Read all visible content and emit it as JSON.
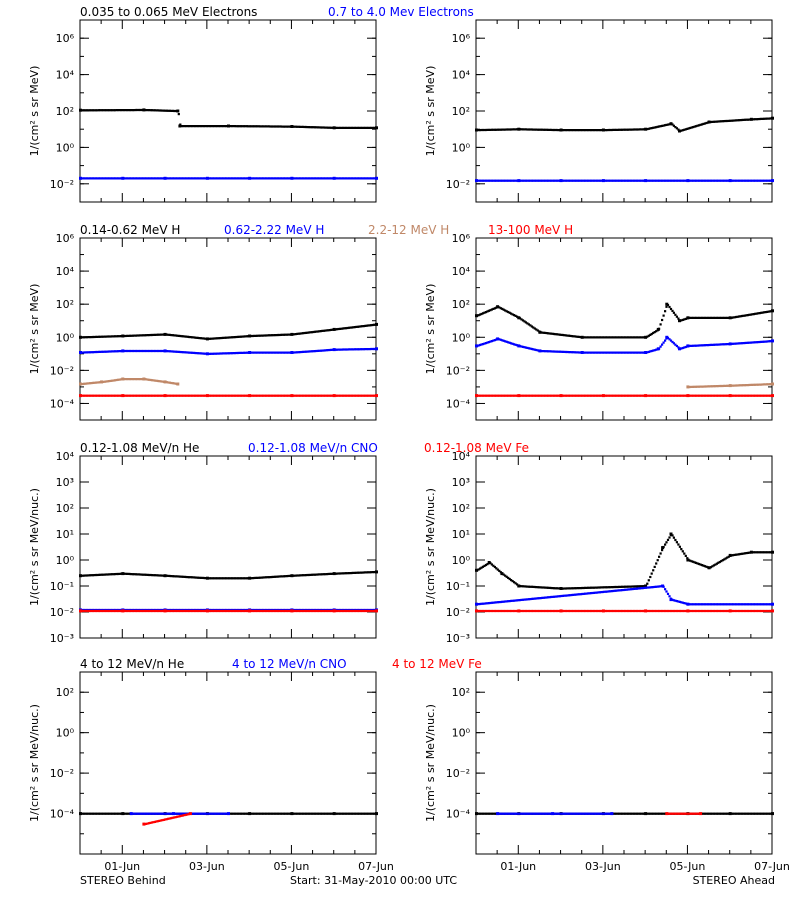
{
  "colors": {
    "black": "#000000",
    "blue": "#0000ff",
    "tan": "#c08868",
    "red": "#ff0000"
  },
  "footer": {
    "left": "STEREO Behind",
    "center": "Start: 31-May-2010 00:00 UTC",
    "right": "STEREO Ahead"
  },
  "chart_data": [
    {
      "type": "scatter",
      "row_title": [
        "0.035 to 0.065 MeV Electrons",
        "0.7 to 4.0 Mev Electrons"
      ],
      "ylabel": "1/(cm² s sr MeV)",
      "yscale": "log",
      "ylim": [
        0.001,
        10000000
      ],
      "yticks": [
        {
          "v": 0.01,
          "label": "10⁻²"
        },
        {
          "v": 1,
          "label": "10⁰"
        },
        {
          "v": 100,
          "label": "10²"
        },
        {
          "v": 10000,
          "label": "10⁴"
        },
        {
          "v": 1000000,
          "label": "10⁶"
        }
      ],
      "xlim_days": [
        0,
        7
      ],
      "xticks": [
        "01-Jun",
        "03-Jun",
        "05-Jun",
        "07-Jun"
      ],
      "panels": [
        {
          "name": "STEREO Behind",
          "series": [
            {
              "name": "0.035 to 0.065 MeV Electrons",
              "color": "#000000",
              "x": [
                0,
                1.5,
                2.3,
                2.35,
                3.5,
                5,
                6,
                7
              ],
              "y": [
                110,
                115,
                100,
                15,
                15,
                14,
                12,
                12
              ]
            },
            {
              "name": "0.7 to 4.0 Mev Electrons",
              "color": "#0000ff",
              "x": [
                0,
                1,
                2,
                3,
                4,
                5,
                6,
                7
              ],
              "y": [
                0.02,
                0.02,
                0.02,
                0.02,
                0.02,
                0.02,
                0.02,
                0.02
              ]
            }
          ]
        },
        {
          "name": "STEREO Ahead",
          "series": [
            {
              "name": "0.035 to 0.065 MeV Electrons",
              "color": "#000000",
              "x": [
                0,
                1,
                2,
                3,
                4,
                4.6,
                4.8,
                5.5,
                6.5,
                7
              ],
              "y": [
                9,
                10,
                9,
                9,
                10,
                20,
                8,
                25,
                35,
                40
              ]
            },
            {
              "name": "0.7 to 4.0 Mev Electrons",
              "color": "#0000ff",
              "x": [
                0,
                1,
                2,
                3,
                4,
                5,
                6,
                7
              ],
              "y": [
                0.015,
                0.015,
                0.015,
                0.015,
                0.015,
                0.015,
                0.015,
                0.015
              ]
            }
          ]
        }
      ]
    },
    {
      "type": "scatter",
      "row_title": [
        "0.14-0.62 MeV H",
        "0.62-2.22 MeV H",
        "2.2-12 MeV H",
        "13-100 MeV H"
      ],
      "ylabel": "1/(cm² s sr MeV)",
      "yscale": "log",
      "ylim": [
        1e-05,
        1000000
      ],
      "yticks": [
        {
          "v": 0.0001,
          "label": "10⁻⁴"
        },
        {
          "v": 0.01,
          "label": "10⁻²"
        },
        {
          "v": 1,
          "label": "10⁰"
        },
        {
          "v": 100,
          "label": "10²"
        },
        {
          "v": 10000,
          "label": "10⁴"
        },
        {
          "v": 1000000,
          "label": "10⁶"
        }
      ],
      "xlim_days": [
        0,
        7
      ],
      "xticks": [
        "01-Jun",
        "03-Jun",
        "05-Jun",
        "07-Jun"
      ],
      "panels": [
        {
          "name": "STEREO Behind",
          "series": [
            {
              "name": "0.14-0.62 MeV H",
              "color": "#000000",
              "x": [
                0,
                1,
                2,
                3,
                4,
                5,
                6,
                7
              ],
              "y": [
                1,
                1.2,
                1.5,
                0.8,
                1.2,
                1.5,
                3,
                6
              ]
            },
            {
              "name": "0.62-2.22 MeV H",
              "color": "#0000ff",
              "x": [
                0,
                1,
                2,
                3,
                4,
                5,
                6,
                7
              ],
              "y": [
                0.12,
                0.15,
                0.15,
                0.1,
                0.12,
                0.12,
                0.18,
                0.2
              ]
            },
            {
              "name": "2.2-12 MeV H",
              "color": "#c08868",
              "x": [
                0,
                0.5,
                1,
                1.5,
                2,
                2.3
              ],
              "y": [
                0.0015,
                0.002,
                0.003,
                0.003,
                0.002,
                0.0015
              ]
            },
            {
              "name": "13-100 MeV H",
              "color": "#ff0000",
              "x": [
                0,
                1,
                2,
                3,
                4,
                5,
                6,
                7
              ],
              "y": [
                0.0003,
                0.0003,
                0.0003,
                0.0003,
                0.0003,
                0.0003,
                0.0003,
                0.0003
              ]
            }
          ]
        },
        {
          "name": "STEREO Ahead",
          "series": [
            {
              "name": "0.14-0.62 MeV H",
              "color": "#000000",
              "x": [
                0,
                0.5,
                1,
                1.5,
                2.5,
                4,
                4.3,
                4.5,
                4.8,
                5,
                6,
                7
              ],
              "y": [
                20,
                70,
                15,
                2,
                1,
                1,
                3,
                100,
                10,
                15,
                15,
                40
              ]
            },
            {
              "name": "0.62-2.22 MeV H",
              "color": "#0000ff",
              "x": [
                0,
                0.5,
                1,
                1.5,
                2.5,
                4,
                4.3,
                4.5,
                4.8,
                5,
                6,
                7
              ],
              "y": [
                0.3,
                0.8,
                0.3,
                0.15,
                0.12,
                0.12,
                0.2,
                1,
                0.2,
                0.3,
                0.4,
                0.6
              ]
            },
            {
              "name": "2.2-12 MeV H",
              "color": "#c08868",
              "x": [
                5,
                6,
                7
              ],
              "y": [
                0.001,
                0.0012,
                0.0015
              ]
            },
            {
              "name": "13-100 MeV H",
              "color": "#ff0000",
              "x": [
                0,
                1,
                2,
                3,
                4,
                5,
                6,
                7
              ],
              "y": [
                0.0003,
                0.0003,
                0.0003,
                0.0003,
                0.0003,
                0.0003,
                0.0003,
                0.0003
              ]
            }
          ]
        }
      ]
    },
    {
      "type": "scatter",
      "row_title": [
        "0.12-1.08 MeV/n He",
        "0.12-1.08 MeV/n CNO",
        "0.12-1.08 MeV Fe"
      ],
      "ylabel": "1/(cm² s sr MeV/nuc.)",
      "yscale": "log",
      "ylim": [
        0.001,
        10000
      ],
      "yticks": [
        {
          "v": 0.001,
          "label": "10⁻³"
        },
        {
          "v": 0.01,
          "label": "10⁻²"
        },
        {
          "v": 0.1,
          "label": "10⁻¹"
        },
        {
          "v": 1,
          "label": "10⁰"
        },
        {
          "v": 10,
          "label": "10¹"
        },
        {
          "v": 100,
          "label": "10²"
        },
        {
          "v": 1000,
          "label": "10³"
        },
        {
          "v": 10000,
          "label": "10⁴"
        }
      ],
      "xlim_days": [
        0,
        7
      ],
      "xticks": [
        "01-Jun",
        "03-Jun",
        "05-Jun",
        "07-Jun"
      ],
      "panels": [
        {
          "name": "STEREO Behind",
          "series": [
            {
              "name": "0.12-1.08 MeV/n He",
              "color": "#000000",
              "x": [
                0,
                1,
                2,
                3,
                4,
                5,
                6,
                7
              ],
              "y": [
                0.25,
                0.3,
                0.25,
                0.2,
                0.2,
                0.25,
                0.3,
                0.35
              ]
            },
            {
              "name": "0.12-1.08 MeV/n CNO",
              "color": "#0000ff",
              "x": [
                0,
                1,
                2,
                3,
                4,
                5,
                6,
                7
              ],
              "y": [
                0.012,
                0.012,
                0.012,
                0.012,
                0.012,
                0.012,
                0.012,
                0.012
              ]
            },
            {
              "name": "0.12-1.08 MeV Fe",
              "color": "#ff0000",
              "x": [
                0,
                1,
                2,
                3,
                4,
                5,
                6,
                7
              ],
              "y": [
                0.011,
                0.011,
                0.011,
                0.011,
                0.011,
                0.011,
                0.011,
                0.011
              ]
            }
          ]
        },
        {
          "name": "STEREO Ahead",
          "series": [
            {
              "name": "0.12-1.08 MeV/n He",
              "color": "#000000",
              "x": [
                0,
                0.3,
                0.6,
                1,
                2,
                4,
                4.4,
                4.6,
                5,
                5.5,
                6,
                6.5,
                7
              ],
              "y": [
                0.4,
                0.8,
                0.3,
                0.1,
                0.08,
                0.1,
                3,
                10,
                1,
                0.5,
                1.5,
                2,
                2
              ]
            },
            {
              "name": "0.12-1.08 MeV/n CNO",
              "color": "#0000ff",
              "x": [
                0,
                4.4,
                4.6,
                5,
                7
              ],
              "y": [
                0.02,
                0.1,
                0.03,
                0.02,
                0.02
              ]
            },
            {
              "name": "0.12-1.08 MeV Fe",
              "color": "#ff0000",
              "x": [
                0,
                1,
                2,
                3,
                4,
                5,
                6,
                7
              ],
              "y": [
                0.011,
                0.011,
                0.011,
                0.011,
                0.011,
                0.011,
                0.011,
                0.011
              ]
            }
          ]
        }
      ]
    },
    {
      "type": "scatter",
      "row_title": [
        "4 to 12 MeV/n He",
        "4 to 12 MeV/n CNO",
        "4 to 12 MeV Fe"
      ],
      "ylabel": "1/(cm² s sr MeV/nuc.)",
      "yscale": "log",
      "ylim": [
        1e-06,
        1000
      ],
      "yticks": [
        {
          "v": 0.0001,
          "label": "10⁻⁴"
        },
        {
          "v": 0.01,
          "label": "10⁻²"
        },
        {
          "v": 1,
          "label": "10⁰"
        },
        {
          "v": 100,
          "label": "10²"
        }
      ],
      "xlim_days": [
        0,
        7
      ],
      "xticks": [
        "01-Jun",
        "03-Jun",
        "05-Jun",
        "07-Jun"
      ],
      "panels": [
        {
          "name": "STEREO Behind",
          "series": [
            {
              "name": "4 to 12 MeV/n He",
              "color": "#000000",
              "x": [
                0,
                1,
                2,
                3,
                4,
                5,
                6,
                7
              ],
              "y": [
                0.0001,
                0.0001,
                0.0001,
                0.0001,
                0.0001,
                0.0001,
                0.0001,
                0.0001
              ]
            },
            {
              "name": "4 to 12 MeV/n CNO",
              "color": "#0000ff",
              "x": [
                1.2,
                2.2,
                3.5
              ],
              "y": [
                0.0001,
                0.0001,
                0.0001
              ]
            },
            {
              "name": "4 to 12 MeV Fe",
              "color": "#ff0000",
              "x": [
                1.5,
                2.6
              ],
              "y": [
                3e-05,
                0.0001
              ]
            }
          ]
        },
        {
          "name": "STEREO Ahead",
          "series": [
            {
              "name": "4 to 12 MeV/n He",
              "color": "#000000",
              "x": [
                0,
                1,
                2,
                3,
                4,
                5,
                6,
                7
              ],
              "y": [
                0.0001,
                0.0001,
                0.0001,
                0.0001,
                0.0001,
                0.0001,
                0.0001,
                0.0001
              ]
            },
            {
              "name": "4 to 12 MeV/n CNO",
              "color": "#0000ff",
              "x": [
                0.5,
                1.8,
                3.2
              ],
              "y": [
                0.0001,
                0.0001,
                0.0001
              ]
            },
            {
              "name": "4 to 12 MeV Fe",
              "color": "#ff0000",
              "x": [
                4.5,
                5.3
              ],
              "y": [
                0.0001,
                0.0001
              ]
            }
          ]
        }
      ]
    }
  ]
}
